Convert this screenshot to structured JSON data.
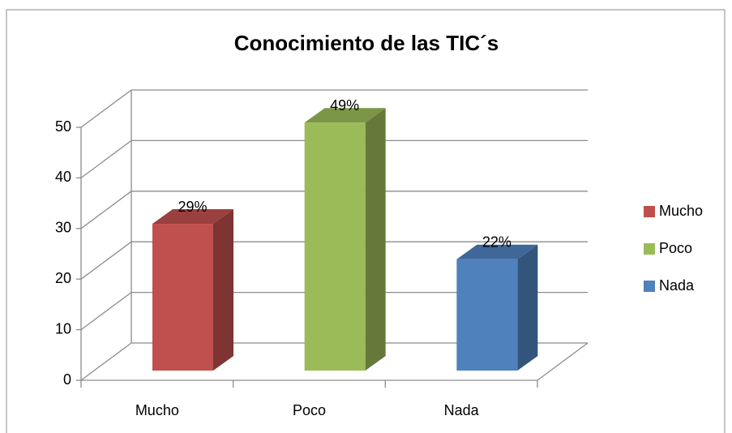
{
  "chart_data": {
    "type": "bar3d",
    "title": "Conocimiento de las TIC´s",
    "categories": [
      "Mucho",
      "Poco",
      "Nada"
    ],
    "values": [
      29,
      49,
      22
    ],
    "value_labels": [
      "29%",
      "49%",
      "22%"
    ],
    "colors": [
      "#c0504d",
      "#9bbb59",
      "#4f81bd"
    ],
    "ylim": [
      0,
      50
    ],
    "yticks": [
      0,
      10,
      20,
      30,
      40,
      50
    ],
    "grid": true,
    "legend": "right"
  }
}
